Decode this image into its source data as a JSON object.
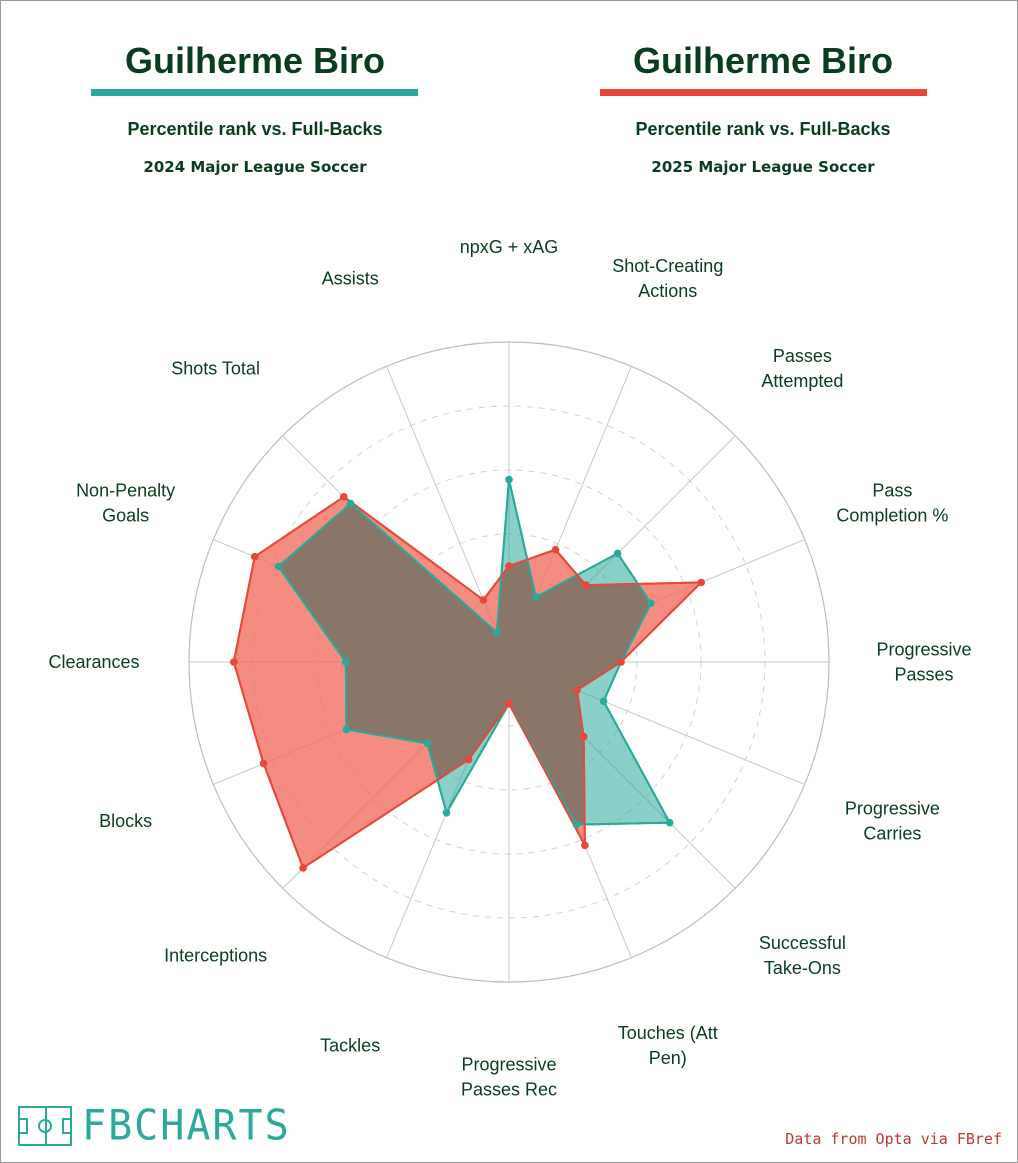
{
  "header": {
    "left": {
      "name": "Guilherme Biro",
      "subtitle": "Percentile rank vs. Full-Backs",
      "season": "2024 Major League Soccer",
      "color": "#2ba99a"
    },
    "right": {
      "name": "Guilherme Biro",
      "subtitle": "Percentile rank vs. Full-Backs",
      "season": "2025 Major League Soccer",
      "color": "#e8483b"
    }
  },
  "footer": {
    "logo_text": "FBCHARTS",
    "source": "Data from Opta via FBref"
  },
  "colors": {
    "series_2024_fill": "#2ba99a",
    "series_2025_fill": "#f26c5f",
    "series_2025_line": "#e8483b",
    "text": "#0a3d1f",
    "grid": "#c8c8c8"
  },
  "chart_data": {
    "type": "radar",
    "range": [
      0,
      100
    ],
    "ring_levels": [
      20,
      40,
      60,
      80,
      100
    ],
    "categories": [
      "npxG + xAG",
      "Shot-Creating Actions",
      "Passes Attempted",
      "Pass Completion %",
      "Progressive Passes",
      "Progressive Carries",
      "Successful Take-Ons",
      "Touches (Att Pen)",
      "Progressive Passes Rec",
      "Tackles",
      "Interceptions",
      "Blocks",
      "Clearances",
      "Non-Penalty Goals",
      "Shots Total",
      "Assists"
    ],
    "series": [
      {
        "name": "2024 Major League Soccer",
        "values": [
          57,
          22,
          48,
          48,
          35,
          32,
          71,
          55,
          13,
          51,
          36,
          55,
          51,
          78,
          70,
          10
        ]
      },
      {
        "name": "2025 Major League Soccer",
        "values": [
          30,
          38,
          34,
          65,
          35,
          23,
          33,
          62,
          13,
          33,
          91,
          83,
          86,
          86,
          73,
          21
        ]
      }
    ]
  }
}
